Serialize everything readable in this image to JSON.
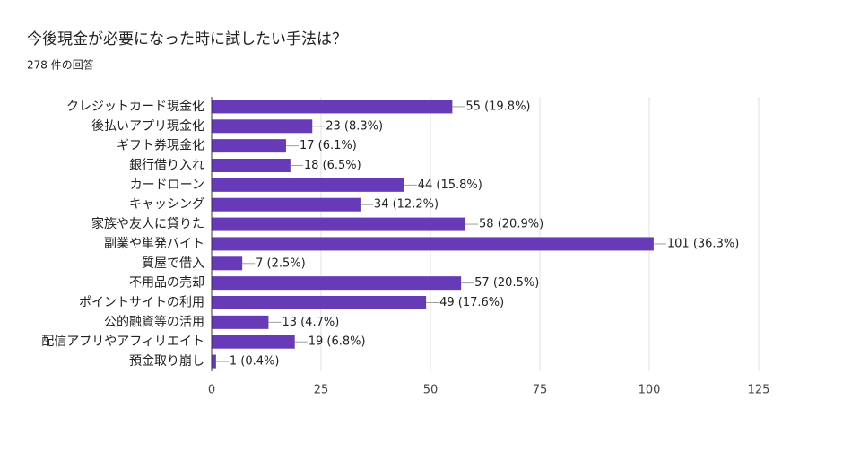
{
  "chart_data": {
    "type": "bar",
    "orientation": "horizontal",
    "title": "今後現金が必要になった時に試したい手法は？",
    "subtitle": "278 件の回答",
    "categories": [
      "クレジットカード現金化",
      "後払いアプリ現金化",
      "ギフト券現金化",
      "銀行借り入れ",
      "カードローン",
      "キャッシング",
      "家族や友人に貸りた",
      "副業や単発バイト",
      "質屋で借入",
      "不用品の売却",
      "ポイントサイトの利用",
      "公的融資等の活用",
      "配信アプリやアフィリエイト",
      "預金取り崩し"
    ],
    "values": [
      55,
      23,
      17,
      18,
      44,
      34,
      58,
      101,
      7,
      57,
      49,
      13,
      19,
      1
    ],
    "value_labels": [
      "55 (19.8%)",
      "23 (8.3%)",
      "17 (6.1%)",
      "18 (6.5%)",
      "44 (15.8%)",
      "34 (12.2%)",
      "58 (20.9%)",
      "101 (36.3%)",
      "7 (2.5%)",
      "57 (20.5%)",
      "49 (17.6%)",
      "13 (4.7%)",
      "19 (6.8%)",
      "1 (0.4%)"
    ],
    "color": "#673ab7",
    "xlim": [
      0,
      125
    ],
    "xticks": [
      0,
      25,
      50,
      75,
      100,
      125
    ],
    "grid": true
  }
}
